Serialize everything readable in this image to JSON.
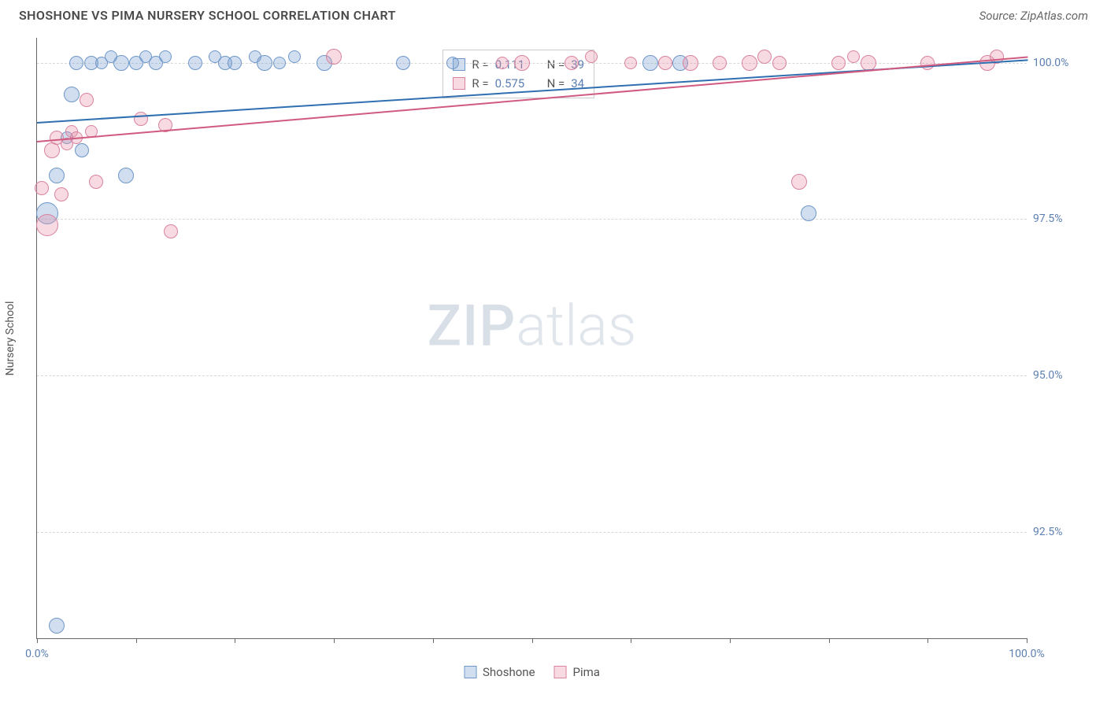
{
  "title": "SHOSHONE VS PIMA NURSERY SCHOOL CORRELATION CHART",
  "source_label": "Source: ZipAtlas.com",
  "ylabel": "Nursery School",
  "watermark": {
    "part1": "ZIP",
    "part2": "atlas"
  },
  "chart": {
    "type": "scatter",
    "background_color": "#ffffff",
    "grid_color": "#d8d8d8",
    "axis_color": "#666666",
    "label_color": "#5b7fb2",
    "font_size_labels": 14,
    "font_size_title": 16,
    "xlim": [
      0,
      100
    ],
    "ylim": [
      90.8,
      100.4
    ],
    "x_ticks": [
      0,
      10,
      20,
      30,
      40,
      50,
      60,
      70,
      80,
      90,
      100
    ],
    "x_tick_labels": {
      "0": "0.0%",
      "100": "100.0%"
    },
    "y_grid": [
      92.5,
      95.0,
      97.5,
      100.0
    ],
    "y_tick_labels": [
      "92.5%",
      "95.0%",
      "97.5%",
      "100.0%"
    ],
    "series": [
      {
        "name": "Shoshone",
        "color_fill": "rgba(120,160,210,0.35)",
        "color_stroke": "#6f97c9",
        "trend_color": "#2f6fb0",
        "trend": {
          "x1": 0,
          "y1": 99.05,
          "x2": 100,
          "y2": 100.05
        },
        "R": "0.111",
        "N": "39",
        "marker_radius_default": 8,
        "points": [
          {
            "x": 2.0,
            "y": 91.0,
            "r": 10
          },
          {
            "x": 1.0,
            "y": 97.6,
            "r": 14
          },
          {
            "x": 2.0,
            "y": 98.2,
            "r": 10
          },
          {
            "x": 3.5,
            "y": 99.5,
            "r": 10
          },
          {
            "x": 3.0,
            "y": 98.8,
            "r": 8
          },
          {
            "x": 4.0,
            "y": 100.0,
            "r": 9
          },
          {
            "x": 4.5,
            "y": 98.6,
            "r": 9
          },
          {
            "x": 5.5,
            "y": 100.0,
            "r": 9
          },
          {
            "x": 6.5,
            "y": 100.0,
            "r": 8
          },
          {
            "x": 7.5,
            "y": 100.1,
            "r": 8
          },
          {
            "x": 8.5,
            "y": 100.0,
            "r": 10
          },
          {
            "x": 9.0,
            "y": 98.2,
            "r": 10
          },
          {
            "x": 10.0,
            "y": 100.0,
            "r": 9
          },
          {
            "x": 11.0,
            "y": 100.1,
            "r": 8
          },
          {
            "x": 12.0,
            "y": 100.0,
            "r": 9
          },
          {
            "x": 13.0,
            "y": 100.1,
            "r": 8
          },
          {
            "x": 16.0,
            "y": 100.0,
            "r": 9
          },
          {
            "x": 18.0,
            "y": 100.1,
            "r": 8
          },
          {
            "x": 19.0,
            "y": 100.0,
            "r": 9
          },
          {
            "x": 20.0,
            "y": 100.0,
            "r": 9
          },
          {
            "x": 22.0,
            "y": 100.1,
            "r": 8
          },
          {
            "x": 23.0,
            "y": 100.0,
            "r": 10
          },
          {
            "x": 24.5,
            "y": 100.0,
            "r": 8
          },
          {
            "x": 26.0,
            "y": 100.1,
            "r": 8
          },
          {
            "x": 29.0,
            "y": 100.0,
            "r": 10
          },
          {
            "x": 37.0,
            "y": 100.0,
            "r": 9
          },
          {
            "x": 42.0,
            "y": 100.0,
            "r": 8
          },
          {
            "x": 62.0,
            "y": 100.0,
            "r": 10
          },
          {
            "x": 65.0,
            "y": 100.0,
            "r": 10
          },
          {
            "x": 78.0,
            "y": 97.6,
            "r": 10
          }
        ]
      },
      {
        "name": "Pima",
        "color_fill": "rgba(230,140,165,0.32)",
        "color_stroke": "#d9839f",
        "trend_color": "#d05a80",
        "trend": {
          "x1": 0,
          "y1": 98.75,
          "x2": 100,
          "y2": 100.1
        },
        "R": "0.575",
        "N": "34",
        "marker_radius_default": 8,
        "points": [
          {
            "x": 0.5,
            "y": 98.0,
            "r": 9
          },
          {
            "x": 1.0,
            "y": 97.4,
            "r": 14
          },
          {
            "x": 1.5,
            "y": 98.6,
            "r": 10
          },
          {
            "x": 2.0,
            "y": 98.8,
            "r": 9
          },
          {
            "x": 2.5,
            "y": 97.9,
            "r": 9
          },
          {
            "x": 3.0,
            "y": 98.7,
            "r": 8
          },
          {
            "x": 3.5,
            "y": 98.9,
            "r": 8
          },
          {
            "x": 4.0,
            "y": 98.8,
            "r": 8
          },
          {
            "x": 5.0,
            "y": 99.4,
            "r": 9
          },
          {
            "x": 5.5,
            "y": 98.9,
            "r": 8
          },
          {
            "x": 6.0,
            "y": 98.1,
            "r": 9
          },
          {
            "x": 10.5,
            "y": 99.1,
            "r": 9
          },
          {
            "x": 13.0,
            "y": 99.0,
            "r": 9
          },
          {
            "x": 13.5,
            "y": 97.3,
            "r": 9
          },
          {
            "x": 30.0,
            "y": 100.1,
            "r": 10
          },
          {
            "x": 47.0,
            "y": 100.0,
            "r": 8
          },
          {
            "x": 49.0,
            "y": 100.0,
            "r": 10
          },
          {
            "x": 54.0,
            "y": 100.0,
            "r": 9
          },
          {
            "x": 56.0,
            "y": 100.1,
            "r": 8
          },
          {
            "x": 60.0,
            "y": 100.0,
            "r": 8
          },
          {
            "x": 63.5,
            "y": 100.0,
            "r": 9
          },
          {
            "x": 66.0,
            "y": 100.0,
            "r": 10
          },
          {
            "x": 69.0,
            "y": 100.0,
            "r": 9
          },
          {
            "x": 72.0,
            "y": 100.0,
            "r": 10
          },
          {
            "x": 73.5,
            "y": 100.1,
            "r": 9
          },
          {
            "x": 75.0,
            "y": 100.0,
            "r": 9
          },
          {
            "x": 77.0,
            "y": 98.1,
            "r": 10
          },
          {
            "x": 81.0,
            "y": 100.0,
            "r": 9
          },
          {
            "x": 82.5,
            "y": 100.1,
            "r": 8
          },
          {
            "x": 84.0,
            "y": 100.0,
            "r": 10
          },
          {
            "x": 90.0,
            "y": 100.0,
            "r": 9
          },
          {
            "x": 96.0,
            "y": 100.0,
            "r": 10
          },
          {
            "x": 97.0,
            "y": 100.1,
            "r": 9
          }
        ]
      }
    ],
    "legend_box": {
      "left_pct": 41.0,
      "top_pct": 2.0
    },
    "bottom_legend": [
      "Shoshone",
      "Pima"
    ]
  }
}
